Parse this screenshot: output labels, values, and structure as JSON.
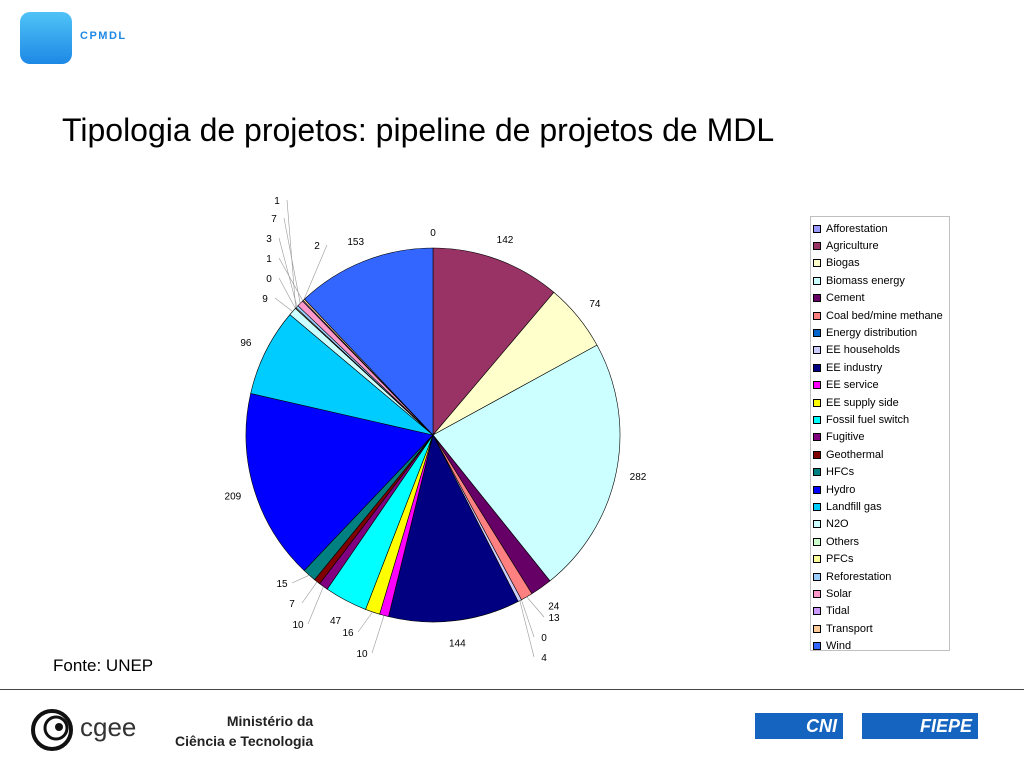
{
  "header": {
    "logo_text": "CPMDL"
  },
  "slide": {
    "title": "Tipologia de projetos: pipeline de projetos de MDL",
    "source": "Fonte: UNEP"
  },
  "footer": {
    "left_logo_text": "cgee",
    "ministry_line1": "Ministério da",
    "ministry_line2": "Ciência e Tecnologia",
    "logo_right_1": "CNI",
    "logo_right_2": "FIEPE"
  },
  "chart_data": {
    "type": "pie",
    "legend_position": "right",
    "slices": [
      {
        "name": "Afforestation",
        "value": 0,
        "color": "#9999ff"
      },
      {
        "name": "Agriculture",
        "value": 142,
        "color": "#993366"
      },
      {
        "name": "Biogas",
        "value": 74,
        "color": "#ffffcc"
      },
      {
        "name": "Biomass energy",
        "value": 282,
        "color": "#ccffff"
      },
      {
        "name": "Cement",
        "value": 24,
        "color": "#660066"
      },
      {
        "name": "Coal bed/mine methane",
        "value": 13,
        "color": "#ff8080"
      },
      {
        "name": "Energy distribution",
        "value": 0,
        "color": "#0066cc"
      },
      {
        "name": "EE households",
        "value": 4,
        "color": "#ccccff"
      },
      {
        "name": "EE industry",
        "value": 144,
        "color": "#000080"
      },
      {
        "name": "EE service",
        "value": 10,
        "color": "#ff00ff"
      },
      {
        "name": "EE supply side",
        "value": 16,
        "color": "#ffff00"
      },
      {
        "name": "Fossil fuel switch",
        "value": 47,
        "color": "#00ffff"
      },
      {
        "name": "Fugitive",
        "value": 10,
        "color": "#800080"
      },
      {
        "name": "Geothermal",
        "value": 7,
        "color": "#800000"
      },
      {
        "name": "HFCs",
        "value": 15,
        "color": "#008080"
      },
      {
        "name": "Hydro",
        "value": 209,
        "color": "#0000ff"
      },
      {
        "name": "Landfill gas",
        "value": 96,
        "color": "#00ccff"
      },
      {
        "name": "N2O",
        "value": 9,
        "color": "#ccffff"
      },
      {
        "name": "Others",
        "value": 0,
        "color": "#ccffcc"
      },
      {
        "name": "PFCs",
        "value": 1,
        "color": "#ffff99"
      },
      {
        "name": "Reforestation",
        "value": 3,
        "color": "#99ccff"
      },
      {
        "name": "Solar",
        "value": 7,
        "color": "#ff99cc"
      },
      {
        "name": "Tidal",
        "value": 1,
        "color": "#cc99ff"
      },
      {
        "name": "Transport",
        "value": 2,
        "color": "#ffcc99"
      },
      {
        "name": "Wind",
        "value": 153,
        "color": "#3366ff"
      }
    ]
  }
}
